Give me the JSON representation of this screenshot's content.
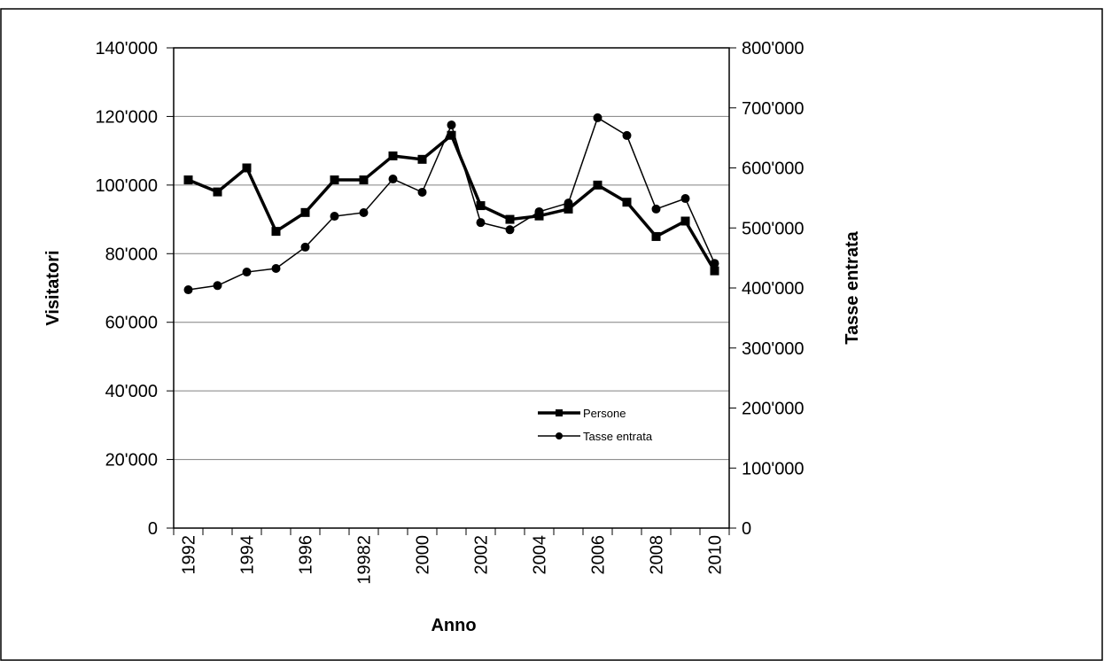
{
  "chart_data": {
    "type": "line",
    "x_label": "Anno",
    "y_label": "Visitatori",
    "y2_label": "Tasse entrata",
    "categories": [
      "1992",
      null,
      "1994",
      null,
      "1996",
      null,
      "19982",
      null,
      "2000",
      null,
      "2002",
      null,
      "2004",
      null,
      "2006",
      null,
      "2008",
      null,
      "2010"
    ],
    "series": [
      {
        "name": "Persone",
        "color": "#000000",
        "marker": "square",
        "axis": "y",
        "values": [
          101500,
          98000,
          105000,
          86500,
          92000,
          101500,
          101500,
          108500,
          107500,
          114500,
          94000,
          90000,
          91000,
          93000,
          100000,
          95000,
          85000,
          89500,
          75000
        ]
      },
      {
        "name": "Tasse entrata",
        "color": "#000000",
        "marker": "circle",
        "axis": "y2",
        "values": [
          397000,
          404000,
          426500,
          432500,
          468000,
          519500,
          525500,
          581500,
          559500,
          671500,
          509000,
          497000,
          527000,
          541500,
          683500,
          654000,
          531500,
          549000,
          441000
        ]
      }
    ],
    "ylim": [
      0,
      140000
    ],
    "yticks": [
      0,
      {
        "value": 20000,
        "label": "20'000"
      },
      {
        "value": 40000,
        "label": "40'000"
      },
      {
        "value": 60000,
        "label": "60'000"
      },
      {
        "value": 80000,
        "label": "80'000"
      },
      {
        "value": 100000,
        "label": "100'000"
      },
      {
        "value": 120000,
        "label": "120'000"
      },
      {
        "value": 140000,
        "label": "140'000"
      }
    ],
    "y2lim": [
      0,
      800000
    ],
    "y2ticks": [
      0,
      {
        "value": 100000,
        "label": "100'000"
      },
      {
        "value": 200000,
        "label": "200'000"
      },
      {
        "value": 300000,
        "label": "300'000"
      },
      {
        "value": 400000,
        "label": "400'000"
      },
      {
        "value": 500000,
        "label": "500'000"
      },
      {
        "value": 600000,
        "label": "600'000"
      },
      {
        "value": 700000,
        "label": "700'000"
      },
      {
        "value": 800000,
        "label": "800'000"
      }
    ],
    "grid": true
  }
}
